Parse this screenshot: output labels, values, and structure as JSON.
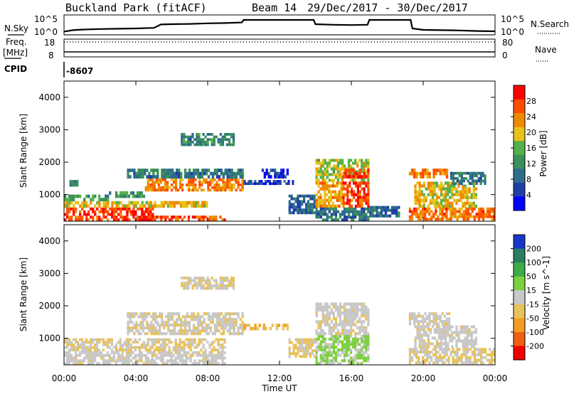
{
  "header": {
    "title": "Buckland Park (fitACF)",
    "beam": "Beam 14",
    "dates": "29/Dec/2017 - 30/Dec/2017"
  },
  "top_panels": {
    "nsky_label": "N.Sky",
    "nsearch_label": "N.Search",
    "noise_ticks": [
      "10^5",
      "10^0"
    ],
    "freq_label_line1": "Freq.",
    "freq_label_line2": "[MHz]",
    "freq_ticks": [
      "18",
      "8"
    ],
    "nave_label": "Nave",
    "nave_ticks": [
      "80",
      "0"
    ],
    "cpid_label": "CPID",
    "cpid_value": "-8607"
  },
  "colors": {
    "power_scale": [
      "#0000ff",
      "#1f3fa6",
      "#2e6c8c",
      "#3a8f5a",
      "#54b24a",
      "#e6c21a",
      "#f08a00",
      "#ff4d00",
      "#ff0000"
    ],
    "velocity_scale": [
      "#1737c8",
      "#2a7d5f",
      "#3eab4a",
      "#7dd03e",
      "#c8c8c8",
      "#e8c25a",
      "#f49c22",
      "#f06010",
      "#f00000"
    ]
  },
  "chart_data": [
    {
      "type": "heatmap",
      "title": "Power",
      "xlabel": "Time UT",
      "ylabel": "Slant Range [km]",
      "x_ticks": [
        "00:00",
        "04:00",
        "08:00",
        "12:00",
        "16:00",
        "20:00",
        "00:00"
      ],
      "y_ticks": [
        1000,
        2000,
        3000,
        4000
      ],
      "xlim_hours": [
        0,
        24
      ],
      "ylim_km": [
        180,
        4500
      ],
      "colorbar": {
        "label": "Power [dB]",
        "ticks": [
          4,
          8,
          12,
          16,
          20,
          24,
          28
        ],
        "range": [
          0,
          32
        ]
      },
      "regions": [
        {
          "t0": 0,
          "t1": 5,
          "r0": 180,
          "r1": 600,
          "value": 28
        },
        {
          "t0": 5,
          "t1": 9,
          "r0": 180,
          "r1": 350,
          "value": 26
        },
        {
          "t0": 0,
          "t1": 8,
          "r0": 600,
          "r1": 800,
          "value": 20
        },
        {
          "t0": 0,
          "t1": 2.5,
          "r0": 800,
          "r1": 1000,
          "value": 14
        },
        {
          "t0": 0.3,
          "t1": 0.8,
          "r0": 1250,
          "r1": 1450,
          "value": 10
        },
        {
          "t0": 2.5,
          "t1": 4.5,
          "r0": 900,
          "r1": 1100,
          "value": 13
        },
        {
          "t0": 4.5,
          "t1": 10,
          "r0": 1100,
          "r1": 1500,
          "value": 24
        },
        {
          "t0": 3.5,
          "t1": 10,
          "r0": 1500,
          "r1": 1800,
          "value": 10
        },
        {
          "t0": 6.5,
          "t1": 9.5,
          "r0": 2500,
          "r1": 2900,
          "value": 11
        },
        {
          "t0": 10,
          "t1": 12.8,
          "r0": 1300,
          "r1": 1450,
          "value": 6
        },
        {
          "t0": 11,
          "t1": 12.5,
          "r0": 1500,
          "r1": 1800,
          "value": 5
        },
        {
          "t0": 12.5,
          "t1": 14,
          "r0": 400,
          "r1": 1000,
          "value": 8
        },
        {
          "t0": 14,
          "t1": 15.5,
          "r0": 600,
          "r1": 1400,
          "value": 22
        },
        {
          "t0": 14,
          "t1": 17,
          "r0": 1400,
          "r1": 2100,
          "value": 18
        },
        {
          "t0": 15.5,
          "t1": 17,
          "r0": 600,
          "r1": 1400,
          "value": 27
        },
        {
          "t0": 15.5,
          "t1": 17,
          "r0": 1500,
          "r1": 1800,
          "value": 28
        },
        {
          "t0": 14,
          "t1": 17,
          "r0": 180,
          "r1": 600,
          "value": 10
        },
        {
          "t0": 17,
          "t1": 18.7,
          "r0": 300,
          "r1": 650,
          "value": 8
        },
        {
          "t0": 19.2,
          "t1": 24,
          "r0": 200,
          "r1": 600,
          "value": 25
        },
        {
          "t0": 19.5,
          "t1": 23,
          "r0": 600,
          "r1": 1400,
          "value": 20
        },
        {
          "t0": 19.2,
          "t1": 21.5,
          "r0": 1500,
          "r1": 1800,
          "value": 24
        },
        {
          "t0": 21.5,
          "t1": 23.5,
          "r0": 1300,
          "r1": 1700,
          "value": 10
        }
      ]
    },
    {
      "type": "heatmap",
      "title": "Velocity",
      "xlabel": "Time UT",
      "ylabel": "Slant Range [km]",
      "x_ticks": [
        "00:00",
        "04:00",
        "08:00",
        "12:00",
        "16:00",
        "20:00",
        "00:00"
      ],
      "y_ticks": [
        1000,
        2000,
        3000,
        4000
      ],
      "xlim_hours": [
        0,
        24
      ],
      "ylim_km": [
        180,
        4500
      ],
      "colorbar": {
        "label": "Velocity [m s^-1]",
        "ticks": [
          200,
          100,
          50,
          15,
          -15,
          -50,
          -100,
          -200
        ],
        "range": [
          -250,
          250
        ]
      },
      "regions": [
        {
          "t0": 0,
          "t1": 9,
          "r0": 180,
          "r1": 600,
          "value": -5
        },
        {
          "t0": 0,
          "t1": 9,
          "r0": 600,
          "r1": 1000,
          "value": -30
        },
        {
          "t0": 3.5,
          "t1": 10,
          "r0": 1100,
          "r1": 1800,
          "value": -20
        },
        {
          "t0": 6.5,
          "t1": 9.5,
          "r0": 2500,
          "r1": 2900,
          "value": -25
        },
        {
          "t0": 10,
          "t1": 12.5,
          "r0": 1250,
          "r1": 1450,
          "value": -80
        },
        {
          "t0": 12.5,
          "t1": 14,
          "r0": 400,
          "r1": 1000,
          "value": -40
        },
        {
          "t0": 14,
          "t1": 17,
          "r0": 600,
          "r1": 1100,
          "value": 40
        },
        {
          "t0": 14,
          "t1": 17,
          "r0": 1100,
          "r1": 2100,
          "value": -5
        },
        {
          "t0": 14,
          "t1": 17,
          "r0": 180,
          "r1": 600,
          "value": 30
        },
        {
          "t0": 19.2,
          "t1": 24,
          "r0": 200,
          "r1": 700,
          "value": -30
        },
        {
          "t0": 19.5,
          "t1": 23,
          "r0": 700,
          "r1": 1400,
          "value": -5
        },
        {
          "t0": 19.2,
          "t1": 21.5,
          "r0": 1400,
          "r1": 1800,
          "value": -10
        }
      ]
    },
    {
      "type": "line",
      "title": "N.Sky",
      "x_hours": [
        0,
        0.5,
        1,
        2,
        3,
        4,
        5,
        5.4,
        6,
        7,
        8,
        9,
        9.9,
        10,
        12,
        13.9,
        14,
        15,
        16,
        16.9,
        17,
        18,
        19.3,
        19.4,
        20,
        21,
        22,
        23,
        24
      ],
      "log10_values": [
        0.9,
        1.4,
        1.6,
        1.8,
        1.9,
        2.0,
        2.2,
        3.4,
        3.5,
        3.6,
        3.8,
        3.9,
        4.1,
        5.0,
        5.0,
        5.0,
        3.5,
        3.3,
        3.2,
        3.3,
        5.0,
        5.0,
        5.0,
        2.0,
        1.5,
        1.4,
        1.3,
        1.1,
        1.0
      ]
    }
  ]
}
